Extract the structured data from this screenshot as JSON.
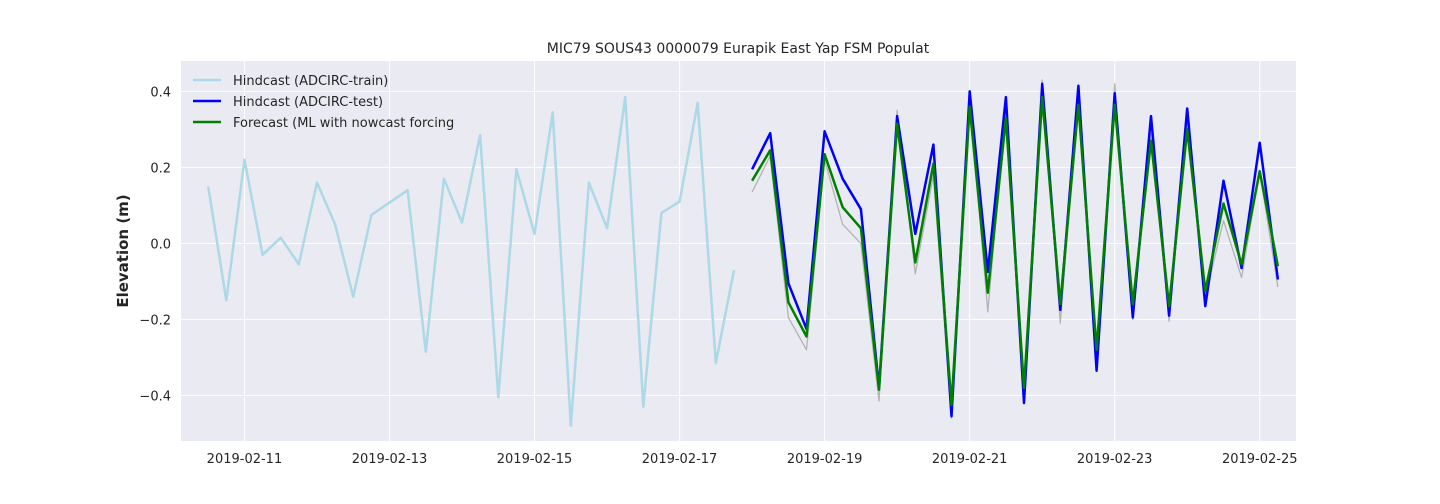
{
  "chart_data": {
    "type": "line",
    "title": "MIC79 SOUS43 0000079 Eurapik East Yap FSM Populat",
    "xlabel": "",
    "ylabel": "Elevation (m)",
    "x_type": "date",
    "xlim": [
      "2019-02-10T03:00",
      "2019-02-25T12:00"
    ],
    "ylim": [
      -0.52,
      0.48
    ],
    "x_ticks": [
      "2019-02-11",
      "2019-02-13",
      "2019-02-15",
      "2019-02-17",
      "2019-02-19",
      "2019-02-21",
      "2019-02-23",
      "2019-02-25"
    ],
    "y_ticks": [
      -0.4,
      -0.2,
      0.0,
      0.2,
      0.4
    ],
    "y_tick_labels": [
      "−0.4",
      "−0.2",
      "0.0",
      "0.2",
      "0.4"
    ],
    "grid": true,
    "legend_position": "top-left",
    "colors": {
      "plot_background": "#eaeaf2",
      "grid": "#ffffff",
      "train": "#add8e6",
      "test": "#0000ff",
      "forecast": "#008000",
      "nowcast": "#a9a9a9"
    },
    "series": [
      {
        "name": "Hindcast (ADCIRC-train)",
        "color": "#add8e6",
        "x": [
          "2019-02-10T12:00",
          "2019-02-10T18:00",
          "2019-02-11T00:00",
          "2019-02-11T06:00",
          "2019-02-11T12:00",
          "2019-02-11T18:00",
          "2019-02-12T00:00",
          "2019-02-12T06:00",
          "2019-02-12T12:00",
          "2019-02-12T18:00",
          "2019-02-13T06:00",
          "2019-02-13T12:00",
          "2019-02-13T18:00",
          "2019-02-14T00:00",
          "2019-02-14T06:00",
          "2019-02-14T12:00",
          "2019-02-14T18:00",
          "2019-02-15T00:00",
          "2019-02-15T06:00",
          "2019-02-15T12:00",
          "2019-02-15T18:00",
          "2019-02-16T00:00",
          "2019-02-16T06:00",
          "2019-02-16T12:00",
          "2019-02-16T18:00",
          "2019-02-17T00:00",
          "2019-02-17T06:00",
          "2019-02-17T12:00",
          "2019-02-17T18:00"
        ],
        "y": [
          0.15,
          -0.15,
          0.22,
          -0.03,
          0.015,
          -0.055,
          0.16,
          0.05,
          -0.14,
          0.075,
          0.14,
          -0.285,
          0.17,
          0.055,
          0.285,
          -0.405,
          0.195,
          0.025,
          0.345,
          -0.48,
          0.16,
          0.04,
          0.385,
          -0.43,
          0.08,
          0.11,
          0.37,
          -0.315,
          -0.07
        ]
      },
      {
        "name": "Hindcast (ADCIRC-test)",
        "color": "#0000ff",
        "x": [
          "2019-02-18T00:00",
          "2019-02-18T06:00",
          "2019-02-18T12:00",
          "2019-02-18T18:00",
          "2019-02-19T00:00",
          "2019-02-19T06:00",
          "2019-02-19T12:00",
          "2019-02-19T18:00",
          "2019-02-20T00:00",
          "2019-02-20T06:00",
          "2019-02-20T12:00",
          "2019-02-20T18:00",
          "2019-02-21T00:00",
          "2019-02-21T06:00",
          "2019-02-21T12:00",
          "2019-02-21T18:00",
          "2019-02-22T00:00",
          "2019-02-22T06:00",
          "2019-02-22T12:00",
          "2019-02-22T18:00",
          "2019-02-23T00:00",
          "2019-02-23T06:00",
          "2019-02-23T12:00",
          "2019-02-23T18:00",
          "2019-02-24T00:00",
          "2019-02-24T06:00",
          "2019-02-24T12:00",
          "2019-02-24T18:00",
          "2019-02-25T00:00",
          "2019-02-25T06:00"
        ],
        "y": [
          0.195,
          0.29,
          -0.105,
          -0.225,
          0.295,
          0.17,
          0.09,
          -0.38,
          0.335,
          0.025,
          0.26,
          -0.455,
          0.4,
          -0.075,
          0.385,
          -0.42,
          0.42,
          -0.175,
          0.415,
          -0.335,
          0.395,
          -0.195,
          0.335,
          -0.19,
          0.355,
          -0.165,
          0.165,
          -0.065,
          0.265,
          -0.095
        ]
      },
      {
        "name": "Forecast (ML with nowcast forcing",
        "color": "#008000",
        "x": [
          "2019-02-18T00:00",
          "2019-02-18T06:00",
          "2019-02-18T12:00",
          "2019-02-18T18:00",
          "2019-02-19T00:00",
          "2019-02-19T06:00",
          "2019-02-19T12:00",
          "2019-02-19T18:00",
          "2019-02-20T00:00",
          "2019-02-20T06:00",
          "2019-02-20T12:00",
          "2019-02-20T18:00",
          "2019-02-21T00:00",
          "2019-02-21T06:00",
          "2019-02-21T12:00",
          "2019-02-21T18:00",
          "2019-02-22T00:00",
          "2019-02-22T06:00",
          "2019-02-22T12:00",
          "2019-02-22T18:00",
          "2019-02-23T00:00",
          "2019-02-23T06:00",
          "2019-02-23T12:00",
          "2019-02-23T18:00",
          "2019-02-24T00:00",
          "2019-02-24T06:00",
          "2019-02-24T12:00",
          "2019-02-24T18:00",
          "2019-02-25T00:00",
          "2019-02-25T06:00"
        ],
        "y": [
          0.165,
          0.245,
          -0.155,
          -0.245,
          0.235,
          0.095,
          0.04,
          -0.385,
          0.315,
          -0.05,
          0.21,
          -0.425,
          0.36,
          -0.13,
          0.33,
          -0.38,
          0.385,
          -0.16,
          0.365,
          -0.28,
          0.365,
          -0.16,
          0.27,
          -0.165,
          0.3,
          -0.125,
          0.105,
          -0.055,
          0.19,
          -0.06
        ]
      },
      {
        "color": "#a9a9a9",
        "x": [
          "2019-02-18T00:00",
          "2019-02-18T06:00",
          "2019-02-18T12:00",
          "2019-02-18T18:00",
          "2019-02-19T00:00",
          "2019-02-19T06:00",
          "2019-02-19T12:00",
          "2019-02-19T18:00",
          "2019-02-20T00:00",
          "2019-02-20T06:00",
          "2019-02-20T12:00",
          "2019-02-20T18:00",
          "2019-02-21T00:00",
          "2019-02-21T06:00",
          "2019-02-21T12:00",
          "2019-02-21T18:00",
          "2019-02-22T00:00",
          "2019-02-22T06:00",
          "2019-02-22T12:00",
          "2019-02-22T18:00",
          "2019-02-23T00:00",
          "2019-02-23T06:00",
          "2019-02-23T12:00",
          "2019-02-23T18:00",
          "2019-02-24T00:00",
          "2019-02-24T06:00",
          "2019-02-24T12:00",
          "2019-02-24T18:00",
          "2019-02-25T00:00",
          "2019-02-25T06:00"
        ],
        "y": [
          0.135,
          0.23,
          -0.195,
          -0.28,
          0.22,
          0.05,
          0.0,
          -0.415,
          0.35,
          -0.08,
          0.18,
          -0.46,
          0.385,
          -0.18,
          0.36,
          -0.39,
          0.43,
          -0.21,
          0.39,
          -0.31,
          0.42,
          -0.2,
          0.29,
          -0.205,
          0.32,
          -0.14,
          0.06,
          -0.09,
          0.19,
          -0.115
        ]
      }
    ]
  }
}
